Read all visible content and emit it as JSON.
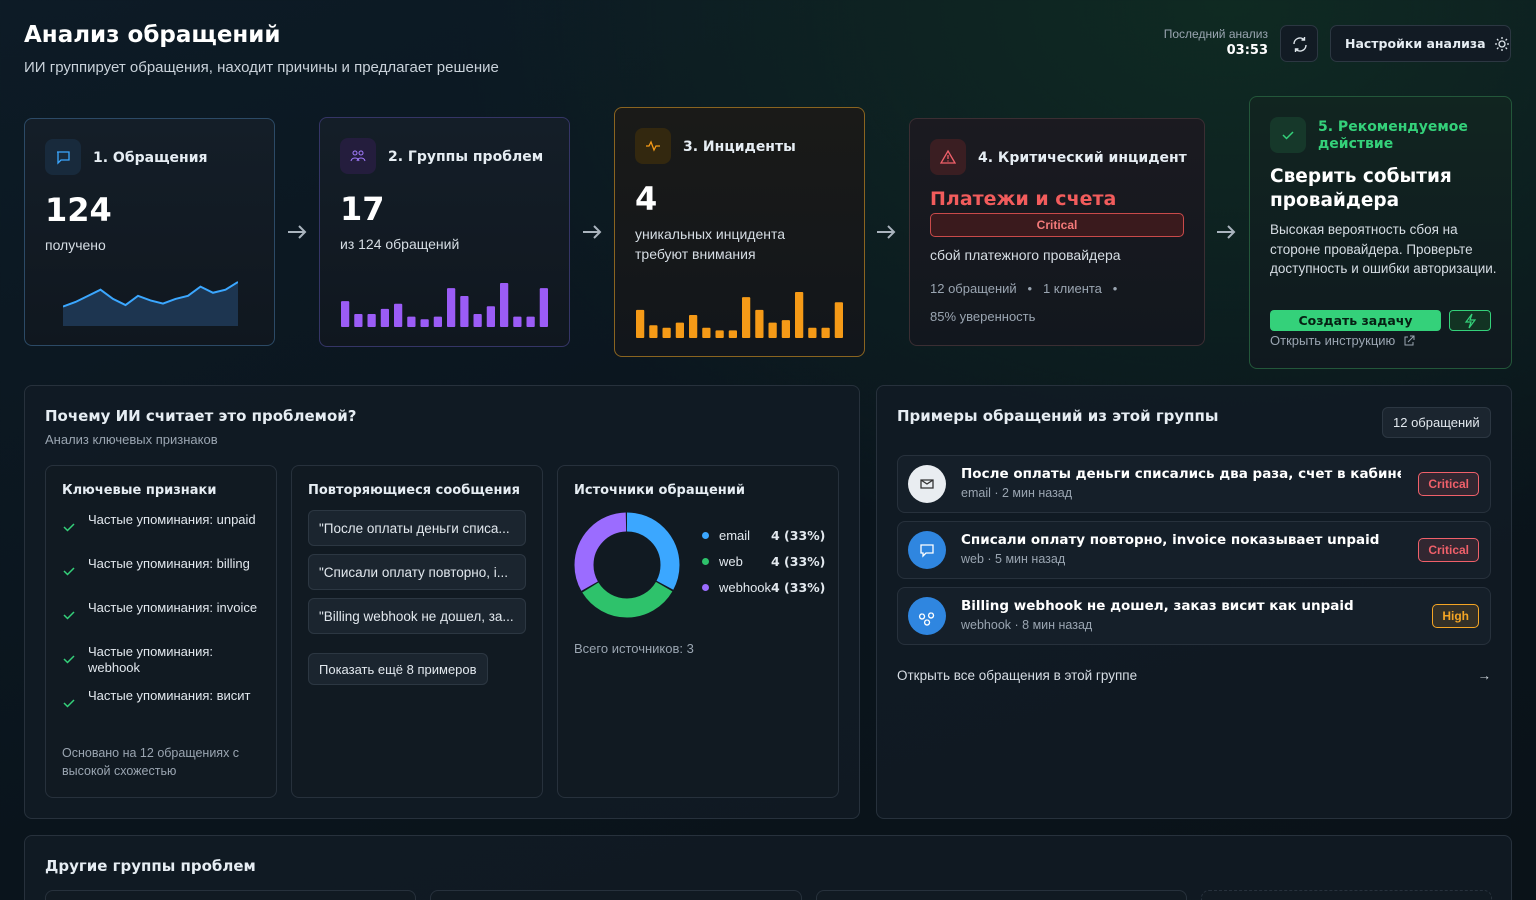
{
  "header": {
    "title": "Анализ обращений",
    "subtitle": "ИИ группирует обращения, находит причины и предлагает решение",
    "last_analysis_label": "Последний анализ",
    "last_analysis_time": "03:53",
    "settings_button": "Настройки анализа"
  },
  "pipeline": {
    "requests": {
      "title": "1. Обращения",
      "value": "124",
      "caption": "получено",
      "sparkline": [
        10,
        13,
        17,
        21,
        15,
        11,
        17,
        14,
        12,
        15,
        17,
        23,
        19,
        21,
        26
      ]
    },
    "groups": {
      "title": "2. Группы проблем",
      "value": "17",
      "caption": "из 124 обращений",
      "color": "#9b5cf6",
      "bars": [
        10,
        5,
        5,
        7,
        9,
        4,
        3,
        4,
        15,
        12,
        5,
        8,
        17,
        4,
        4,
        15
      ]
    },
    "incidents": {
      "title": "3. Инциденты",
      "value": "4",
      "caption": "уникальных инцидента требуют внимания",
      "color": "#f59a17",
      "bars": [
        11,
        5,
        4,
        6,
        9,
        4,
        3,
        3,
        16,
        11,
        6,
        7,
        18,
        4,
        4,
        14
      ]
    },
    "critical": {
      "title": "4. Критический инцидент",
      "name": "Платежи и счета",
      "badge": "Critical",
      "caption": "сбой платежного провайдера",
      "requests": "12 обращений",
      "clients": "1 клиента",
      "confidence": "85% уверенность"
    },
    "action": {
      "title": "5. Рекомендуемое действие",
      "heading": "Сверить события провайдера",
      "text": "Высокая вероятность сбоя на стороне провайдера. Проверьте доступность и ошибки авторизации.",
      "button": "Создать задачу",
      "link": "Открыть инструкцию"
    }
  },
  "why": {
    "title": "Почему ИИ считает это проблемой?",
    "subtitle": "Анализ ключевых признаков",
    "features": {
      "title": "Ключевые признаки",
      "items": [
        "Частые упоминания: unpaid",
        "Частые упоминания: billing",
        "Частые упоминания: invoice",
        "Частые упоминания: webhook",
        "Частые упоминания: висит"
      ],
      "footnote": "Основано на 12 обращениях с высокой схожестью"
    },
    "messages": {
      "title": "Повторяющиеся сообщения",
      "items": [
        "\"После оплаты деньги списа...",
        "\"Списали оплату повторно, i...",
        "\"Billing webhook не дошел, за..."
      ],
      "more_button": "Показать ещё 8 примеров"
    },
    "sources": {
      "title": "Источники обращений",
      "items": [
        {
          "name": "email",
          "count": 4,
          "label": "4 (33%)",
          "color": "#3ba7ff"
        },
        {
          "name": "web",
          "count": 4,
          "label": "4 (33%)",
          "color": "#2ec26b"
        },
        {
          "name": "webhook",
          "count": 4,
          "label": "4 (33%)",
          "color": "#9b6cff"
        }
      ],
      "total": "Всего источников: 3"
    }
  },
  "examples": {
    "title": "Примеры обращений из этой группы",
    "count_badge": "12 обращений",
    "items": [
      {
        "title": "После оплаты деньги списались два раза, счет в кабинете не...",
        "meta": "email · 2 мин назад",
        "badge": "Critical",
        "color": "#f0606a"
      },
      {
        "title": "Списали оплату повторно, invoice показывает unpaid",
        "meta": "web · 5 мин назад",
        "badge": "Critical",
        "color": "#f0606a"
      },
      {
        "title": "Billing webhook не дошел, заказ висит как unpaid",
        "meta": "webhook · 8 мин назад",
        "badge": "High",
        "color": "#f5a524"
      }
    ],
    "open_all": "Открыть все обращения в этой группе"
  },
  "other_groups": {
    "title": "Другие группы проблем"
  }
}
